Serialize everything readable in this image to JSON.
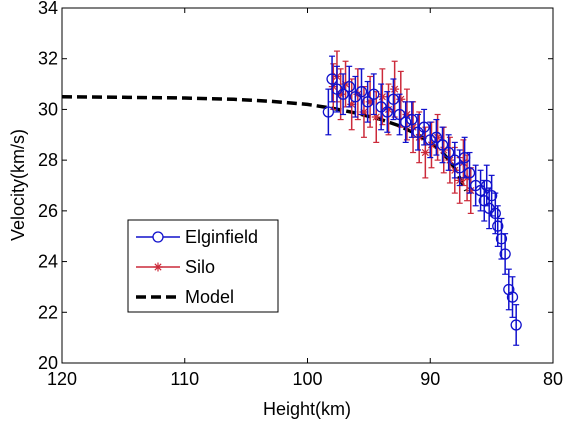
{
  "chart_data": {
    "type": "scatter",
    "xlabel": "Height(km)",
    "ylabel": "Velocity(km/s)",
    "xlim": [
      120,
      80
    ],
    "ylim": [
      20,
      34
    ],
    "x_reversed": true,
    "x_ticks": [
      120,
      110,
      100,
      90,
      80
    ],
    "y_ticks": [
      20,
      22,
      24,
      26,
      28,
      30,
      32,
      34
    ],
    "x_tick_labels": [
      "120",
      "110",
      "100",
      "90",
      "80"
    ],
    "y_tick_labels": [
      "20",
      "22",
      "24",
      "26",
      "28",
      "30",
      "32",
      "34"
    ],
    "grid": false,
    "legend_position": "lower-left",
    "series": [
      {
        "name": "Elginfield",
        "color": "#1010cc",
        "marker": "circle",
        "points": [
          {
            "x": 98.3,
            "y": 29.9,
            "err": 0.9
          },
          {
            "x": 98.0,
            "y": 31.2,
            "err": 0.9
          },
          {
            "x": 97.6,
            "y": 30.8,
            "err": 0.9
          },
          {
            "x": 97.1,
            "y": 30.6,
            "err": 0.8
          },
          {
            "x": 96.6,
            "y": 30.9,
            "err": 0.8
          },
          {
            "x": 96.1,
            "y": 30.5,
            "err": 0.8
          },
          {
            "x": 95.6,
            "y": 30.7,
            "err": 0.9
          },
          {
            "x": 95.1,
            "y": 30.3,
            "err": 0.8
          },
          {
            "x": 94.6,
            "y": 30.6,
            "err": 0.8
          },
          {
            "x": 94.0,
            "y": 30.1,
            "err": 0.9
          },
          {
            "x": 93.5,
            "y": 29.9,
            "err": 0.8
          },
          {
            "x": 93.0,
            "y": 30.4,
            "err": 0.8
          },
          {
            "x": 92.5,
            "y": 29.8,
            "err": 0.8
          },
          {
            "x": 92.0,
            "y": 29.5,
            "err": 0.8
          },
          {
            "x": 91.5,
            "y": 29.6,
            "err": 0.7
          },
          {
            "x": 91.0,
            "y": 29.1,
            "err": 0.7
          },
          {
            "x": 90.5,
            "y": 29.3,
            "err": 0.7
          },
          {
            "x": 90.0,
            "y": 28.8,
            "err": 0.7
          },
          {
            "x": 89.5,
            "y": 28.9,
            "err": 0.7
          },
          {
            "x": 89.0,
            "y": 28.6,
            "err": 0.7
          },
          {
            "x": 88.5,
            "y": 28.3,
            "err": 0.7
          },
          {
            "x": 88.0,
            "y": 28.0,
            "err": 0.7
          },
          {
            "x": 87.6,
            "y": 27.7,
            "err": 0.7
          },
          {
            "x": 87.2,
            "y": 28.1,
            "err": 0.8
          },
          {
            "x": 86.8,
            "y": 27.5,
            "err": 0.8
          },
          {
            "x": 86.3,
            "y": 27.0,
            "err": 0.8
          },
          {
            "x": 85.9,
            "y": 26.8,
            "err": 0.8
          },
          {
            "x": 85.6,
            "y": 26.4,
            "err": 0.8
          },
          {
            "x": 85.4,
            "y": 27.0,
            "err": 0.8
          },
          {
            "x": 85.2,
            "y": 26.1,
            "err": 0.8
          },
          {
            "x": 85.0,
            "y": 26.6,
            "err": 0.8
          },
          {
            "x": 84.7,
            "y": 25.9,
            "err": 0.8
          },
          {
            "x": 84.5,
            "y": 25.4,
            "err": 0.8
          },
          {
            "x": 84.2,
            "y": 24.9,
            "err": 0.8
          },
          {
            "x": 83.9,
            "y": 24.3,
            "err": 0.8
          },
          {
            "x": 83.6,
            "y": 22.9,
            "err": 0.8
          },
          {
            "x": 83.3,
            "y": 22.6,
            "err": 0.8
          },
          {
            "x": 83.0,
            "y": 21.5,
            "err": 0.8
          }
        ]
      },
      {
        "name": "Silo",
        "color": "#cc2a3a",
        "marker": "asterisk",
        "points": [
          {
            "x": 97.9,
            "y": 30.9,
            "err": 0.9
          },
          {
            "x": 97.6,
            "y": 31.3,
            "err": 1.0
          },
          {
            "x": 97.3,
            "y": 30.6,
            "err": 1.0
          },
          {
            "x": 96.9,
            "y": 31.0,
            "err": 0.9
          },
          {
            "x": 96.4,
            "y": 30.2,
            "err": 1.0
          },
          {
            "x": 95.9,
            "y": 30.6,
            "err": 1.0
          },
          {
            "x": 95.4,
            "y": 29.9,
            "err": 1.0
          },
          {
            "x": 94.9,
            "y": 30.3,
            "err": 1.0
          },
          {
            "x": 94.4,
            "y": 29.7,
            "err": 1.0
          },
          {
            "x": 93.9,
            "y": 30.5,
            "err": 1.1
          },
          {
            "x": 93.4,
            "y": 30.0,
            "err": 1.0
          },
          {
            "x": 92.9,
            "y": 30.8,
            "err": 1.1
          },
          {
            "x": 92.4,
            "y": 30.4,
            "err": 1.1
          },
          {
            "x": 91.9,
            "y": 29.8,
            "err": 1.0
          },
          {
            "x": 91.4,
            "y": 29.3,
            "err": 1.0
          },
          {
            "x": 90.9,
            "y": 28.9,
            "err": 1.0
          },
          {
            "x": 90.4,
            "y": 28.3,
            "err": 1.0
          },
          {
            "x": 89.9,
            "y": 28.6,
            "err": 0.9
          },
          {
            "x": 89.4,
            "y": 28.9,
            "err": 0.9
          },
          {
            "x": 88.9,
            "y": 28.4,
            "err": 0.9
          },
          {
            "x": 88.4,
            "y": 28.0,
            "err": 0.9
          },
          {
            "x": 88.0,
            "y": 27.6,
            "err": 0.9
          },
          {
            "x": 87.6,
            "y": 27.2,
            "err": 0.9
          },
          {
            "x": 87.3,
            "y": 27.9,
            "err": 0.9
          },
          {
            "x": 87.0,
            "y": 27.3,
            "err": 0.9
          },
          {
            "x": 86.7,
            "y": 26.8,
            "err": 0.9
          }
        ]
      },
      {
        "name": "Model",
        "color": "#000000",
        "line": "dashed",
        "points": [
          {
            "x": 120,
            "y": 30.5
          },
          {
            "x": 115,
            "y": 30.48
          },
          {
            "x": 110,
            "y": 30.45
          },
          {
            "x": 106,
            "y": 30.4
          },
          {
            "x": 103,
            "y": 30.32
          },
          {
            "x": 100,
            "y": 30.2
          },
          {
            "x": 98,
            "y": 30.05
          },
          {
            "x": 96,
            "y": 29.85
          },
          {
            "x": 94,
            "y": 29.6
          },
          {
            "x": 92.5,
            "y": 29.35
          },
          {
            "x": 91,
            "y": 29.0
          },
          {
            "x": 90,
            "y": 28.7
          },
          {
            "x": 89,
            "y": 28.3
          },
          {
            "x": 88.3,
            "y": 27.9
          },
          {
            "x": 87.8,
            "y": 27.5
          },
          {
            "x": 87.4,
            "y": 27.1
          },
          {
            "x": 87.1,
            "y": 26.8
          }
        ]
      }
    ]
  }
}
